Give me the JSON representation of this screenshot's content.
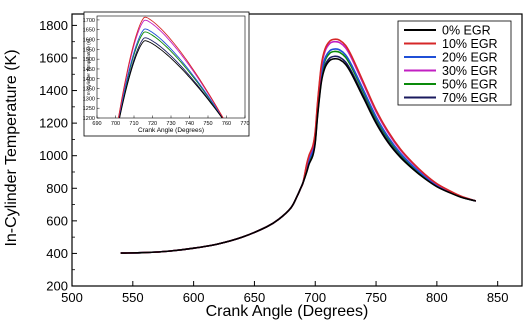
{
  "chart_data": {
    "type": "line",
    "xlabel": "Crank Angle (Degrees)",
    "ylabel": "In-Cylinder Temperature (K)",
    "xlim": [
      500,
      870
    ],
    "ylim": [
      200,
      1870
    ],
    "xticks": [
      "500",
      "550",
      "600",
      "650",
      "700",
      "750",
      "800",
      "850"
    ],
    "yticks": [
      "200",
      "400",
      "600",
      "800",
      "1000",
      "1200",
      "1400",
      "1600",
      "1800"
    ],
    "legend_position": "top-right",
    "series": [
      {
        "name": "0% EGR",
        "color": "#000000",
        "peak": 1595
      },
      {
        "name": "10% EGR",
        "color": "#d62728",
        "peak": 1715
      },
      {
        "name": "20% EGR",
        "color": "#1f4fd6",
        "peak": 1655
      },
      {
        "name": "30% EGR",
        "color": "#c21fc2",
        "peak": 1700
      },
      {
        "name": "50% EGR",
        "color": "#0a8a0a",
        "peak": 1640
      },
      {
        "name": "70% EGR",
        "color": "#1a1a5e",
        "peak": 1610
      }
    ],
    "base_curve_x": [
      540,
      560,
      580,
      600,
      620,
      640,
      660,
      670,
      680,
      685,
      688,
      690,
      693,
      695,
      698,
      700,
      702,
      705,
      708,
      712,
      716,
      720,
      725,
      730,
      740,
      750,
      760,
      770,
      780,
      790,
      800,
      810,
      820,
      832
    ],
    "base_curve_y": [
      402,
      405,
      414,
      432,
      458,
      500,
      563,
      610,
      680,
      750,
      800,
      835,
      900,
      950,
      1000,
      1080,
      1250,
      1450,
      1540,
      1585,
      1595,
      1590,
      1560,
      1500,
      1350,
      1200,
      1080,
      990,
      920,
      860,
      810,
      775,
      745,
      722
    ],
    "inset": {
      "xlabel": "Crank Angle (Degrees)",
      "ylabel": "In-Cylinder Temperature (K)",
      "xlim": [
        690,
        770
      ],
      "ylim": [
        1200,
        1720
      ],
      "xticks": [
        "690",
        "700",
        "710",
        "720",
        "730",
        "740",
        "750",
        "760",
        "770"
      ],
      "yticks": [
        "1200",
        "1250",
        "1300",
        "1350",
        "1400",
        "1450",
        "1500",
        "1550",
        "1600",
        "1650",
        "1700"
      ]
    }
  }
}
